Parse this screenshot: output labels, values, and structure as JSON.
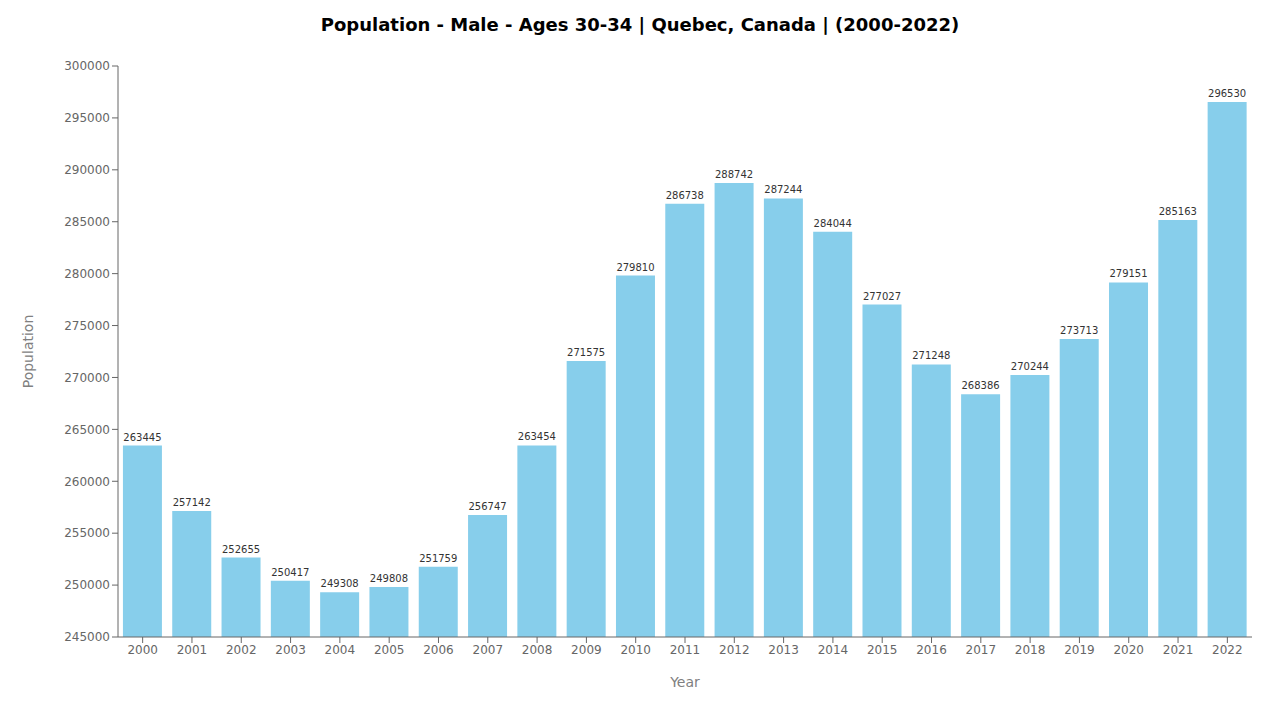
{
  "chart_data": {
    "type": "bar",
    "title": "Population - Male - Ages 30-34 | Quebec, Canada |  (2000-2022)",
    "xlabel": "Year",
    "ylabel": "Population",
    "categories": [
      "2000",
      "2001",
      "2002",
      "2003",
      "2004",
      "2005",
      "2006",
      "2007",
      "2008",
      "2009",
      "2010",
      "2011",
      "2012",
      "2013",
      "2014",
      "2015",
      "2016",
      "2017",
      "2018",
      "2019",
      "2020",
      "2021",
      "2022"
    ],
    "values": [
      263445,
      257142,
      252655,
      250417,
      249308,
      249808,
      251759,
      256747,
      263454,
      271575,
      279810,
      286738,
      288742,
      287244,
      284044,
      277027,
      271248,
      268386,
      270244,
      273713,
      279151,
      285163,
      296530
    ],
    "color": "#87CEEB",
    "ylim": [
      245000,
      300000
    ],
    "yticks": [
      245000,
      250000,
      255000,
      260000,
      265000,
      270000,
      275000,
      280000,
      285000,
      290000,
      295000,
      300000
    ],
    "grid": false,
    "data_labels": true
  }
}
